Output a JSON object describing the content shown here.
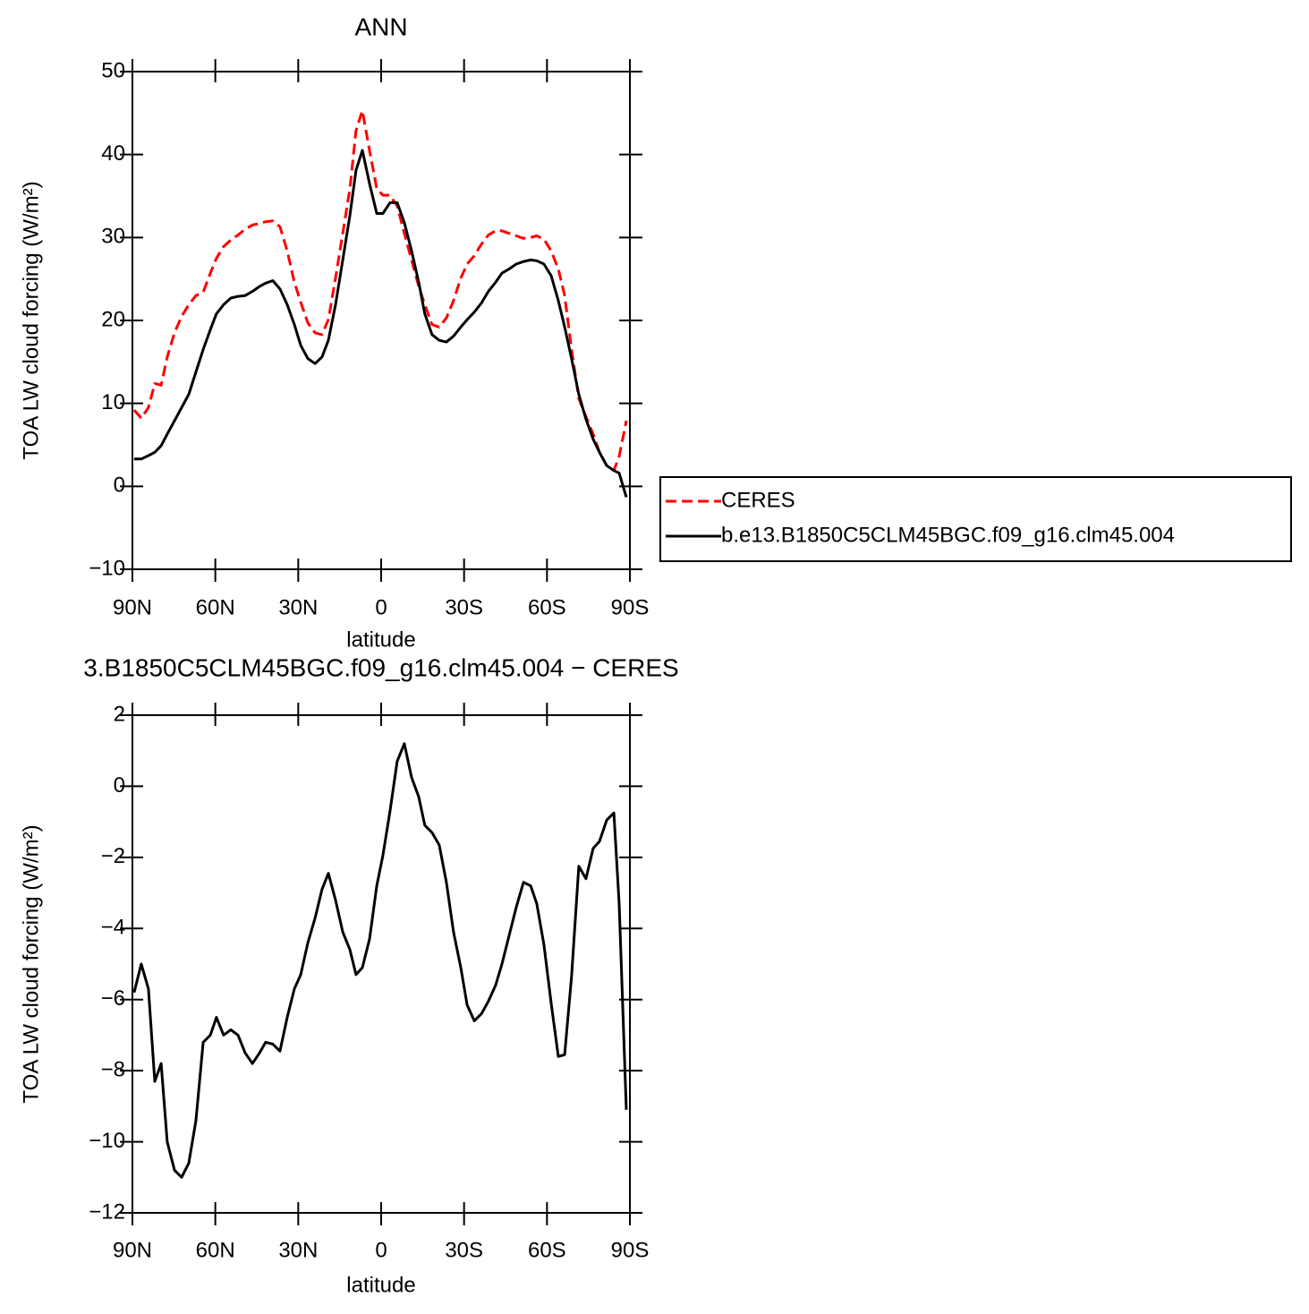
{
  "chart_data": [
    {
      "type": "line",
      "title": "ANN",
      "xlabel": "latitude",
      "ylabel": "TOA LW cloud forcing (W/m²)",
      "x": [
        89.4,
        86.8,
        84.2,
        81.9,
        79.6,
        77.4,
        74.8,
        72.2,
        69.6,
        67.0,
        64.4,
        61.8,
        59.6,
        57.0,
        54.4,
        51.8,
        49.2,
        46.6,
        44.0,
        41.8,
        39.2,
        36.6,
        34.0,
        31.4,
        29.1,
        26.5,
        23.9,
        21.4,
        19.1,
        16.5,
        13.9,
        11.3,
        9.1,
        6.8,
        4.2,
        1.6,
        -0.6,
        -3.2,
        -5.8,
        -8.4,
        -11.0,
        -13.6,
        -15.8,
        -18.4,
        -21.0,
        -23.6,
        -26.2,
        -28.8,
        -31.1,
        -33.7,
        -36.3,
        -38.8,
        -41.4,
        -43.7,
        -46.3,
        -48.9,
        -51.5,
        -54.1,
        -56.3,
        -58.9,
        -61.5,
        -64.1,
        -66.4,
        -68.9,
        -71.5,
        -74.1,
        -76.7,
        -79.0,
        -81.6,
        -84.2,
        -86.1,
        -88.7
      ],
      "xlim": [
        90,
        -90
      ],
      "xticks": [
        {
          "value": 90,
          "label": "90N"
        },
        {
          "value": 60,
          "label": "60N"
        },
        {
          "value": 30,
          "label": "30N"
        },
        0,
        {
          "value": -30,
          "label": "30S"
        },
        {
          "value": -60,
          "label": "60S"
        },
        {
          "value": -90,
          "label": "90S"
        }
      ],
      "ylim": [
        -10,
        50
      ],
      "yticks": [
        {
          "value": -10,
          "label": "−10"
        },
        0,
        10,
        20,
        30,
        40,
        50
      ],
      "legend": "right",
      "series": [
        {
          "name": "CERES",
          "color": "#ff0000",
          "dashed": true,
          "values": [
            9.2,
            8.2,
            9.5,
            12.4,
            12.2,
            15.6,
            18.5,
            20.5,
            21.9,
            23.0,
            23.4,
            25.7,
            27.5,
            28.9,
            29.7,
            30.3,
            31.0,
            31.5,
            31.7,
            31.9,
            32.0,
            31.3,
            28.4,
            24.6,
            22.2,
            19.7,
            18.5,
            18.3,
            20.1,
            25.1,
            30.5,
            35.9,
            42.9,
            45.3,
            40.5,
            35.9,
            35.1,
            35.1,
            33.8,
            30.5,
            27.3,
            24.1,
            21.9,
            19.5,
            19.2,
            20.3,
            22.4,
            25.1,
            26.8,
            27.8,
            29.2,
            30.3,
            30.8,
            30.8,
            30.5,
            30.2,
            29.9,
            30.0,
            30.2,
            29.8,
            28.4,
            26.2,
            23.0,
            16.5,
            10.6,
            8.4,
            6.3,
            4.1,
            2.5,
            1.9,
            3.6,
            7.9
          ]
        },
        {
          "name": "b.e13.B1850C5CLM45BGC.f09_g16.clm45.004",
          "color": "#000000",
          "dashed": false,
          "values": [
            3.3,
            3.3,
            3.7,
            4.1,
            4.9,
            6.3,
            7.9,
            9.5,
            11.1,
            13.8,
            16.5,
            18.9,
            20.8,
            21.9,
            22.7,
            22.9,
            23.0,
            23.5,
            24.1,
            24.5,
            24.8,
            23.8,
            21.9,
            19.5,
            17.0,
            15.4,
            14.8,
            15.6,
            17.6,
            21.9,
            27.3,
            32.7,
            38.1,
            40.5,
            36.5,
            32.9,
            32.9,
            34.2,
            34.2,
            31.8,
            28.4,
            24.6,
            20.8,
            18.3,
            17.6,
            17.4,
            18.1,
            19.2,
            20.1,
            21.0,
            22.1,
            23.5,
            24.6,
            25.7,
            26.2,
            26.8,
            27.1,
            27.3,
            27.2,
            26.8,
            25.4,
            22.4,
            19.2,
            15.4,
            11.1,
            8.1,
            5.7,
            4.1,
            2.5,
            1.9,
            1.6,
            -1.3
          ]
        }
      ]
    },
    {
      "type": "line",
      "title": "3.B1850C5CLM45BGC.f09_g16.clm45.004 − CERES",
      "xlabel": "latitude",
      "ylabel": "TOA LW cloud forcing (W/m²)",
      "x": [
        89.4,
        86.8,
        84.2,
        81.9,
        79.6,
        77.4,
        74.8,
        72.2,
        69.6,
        67.0,
        64.4,
        61.8,
        59.6,
        57.0,
        54.4,
        51.8,
        49.2,
        46.6,
        44.0,
        41.8,
        39.2,
        36.6,
        34.0,
        31.4,
        29.1,
        26.5,
        23.9,
        21.4,
        19.1,
        16.5,
        13.9,
        11.3,
        9.1,
        6.8,
        4.2,
        1.6,
        -0.6,
        -3.2,
        -5.8,
        -8.4,
        -11.0,
        -13.6,
        -15.8,
        -18.4,
        -21.0,
        -23.6,
        -26.2,
        -28.8,
        -31.1,
        -33.7,
        -36.3,
        -38.8,
        -41.4,
        -43.7,
        -46.3,
        -48.9,
        -51.5,
        -54.1,
        -56.3,
        -58.9,
        -61.5,
        -64.1,
        -66.4,
        -68.9,
        -71.5,
        -74.1,
        -76.7,
        -79.0,
        -81.6,
        -84.2,
        -86.1,
        -88.7
      ],
      "xlim": [
        90,
        -90
      ],
      "xticks": [
        {
          "value": 90,
          "label": "90N"
        },
        {
          "value": 60,
          "label": "60N"
        },
        {
          "value": 30,
          "label": "30N"
        },
        0,
        {
          "value": -30,
          "label": "30S"
        },
        {
          "value": -60,
          "label": "60S"
        },
        {
          "value": -90,
          "label": "90S"
        }
      ],
      "ylim": [
        -12,
        2
      ],
      "yticks": [
        {
          "value": -12,
          "label": "−12"
        },
        {
          "value": -10,
          "label": "−10"
        },
        {
          "value": -8,
          "label": "−8"
        },
        {
          "value": -6,
          "label": "−6"
        },
        {
          "value": -4,
          "label": "−4"
        },
        {
          "value": -2,
          "label": "−2"
        },
        0,
        2
      ],
      "series": [
        {
          "color": "#000000",
          "dashed": false,
          "values": [
            -5.8,
            -5.0,
            -5.7,
            -8.3,
            -7.8,
            -10.0,
            -10.8,
            -11.0,
            -10.6,
            -9.4,
            -7.2,
            -7.0,
            -6.5,
            -7.0,
            -6.85,
            -7.0,
            -7.5,
            -7.8,
            -7.5,
            -7.2,
            -7.25,
            -7.45,
            -6.5,
            -5.7,
            -5.3,
            -4.4,
            -3.7,
            -2.9,
            -2.45,
            -3.2,
            -4.1,
            -4.6,
            -5.3,
            -5.1,
            -4.3,
            -2.8,
            -1.95,
            -0.7,
            0.7,
            1.2,
            0.25,
            -0.3,
            -1.1,
            -1.3,
            -1.65,
            -2.7,
            -4.1,
            -5.1,
            -6.15,
            -6.6,
            -6.4,
            -6.05,
            -5.6,
            -5.0,
            -4.2,
            -3.4,
            -2.7,
            -2.8,
            -3.3,
            -4.45,
            -6.1,
            -7.6,
            -7.55,
            -5.35,
            -2.25,
            -2.6,
            -1.75,
            -1.55,
            -0.95,
            -0.75,
            -3.3,
            -9.1
          ]
        }
      ]
    }
  ]
}
